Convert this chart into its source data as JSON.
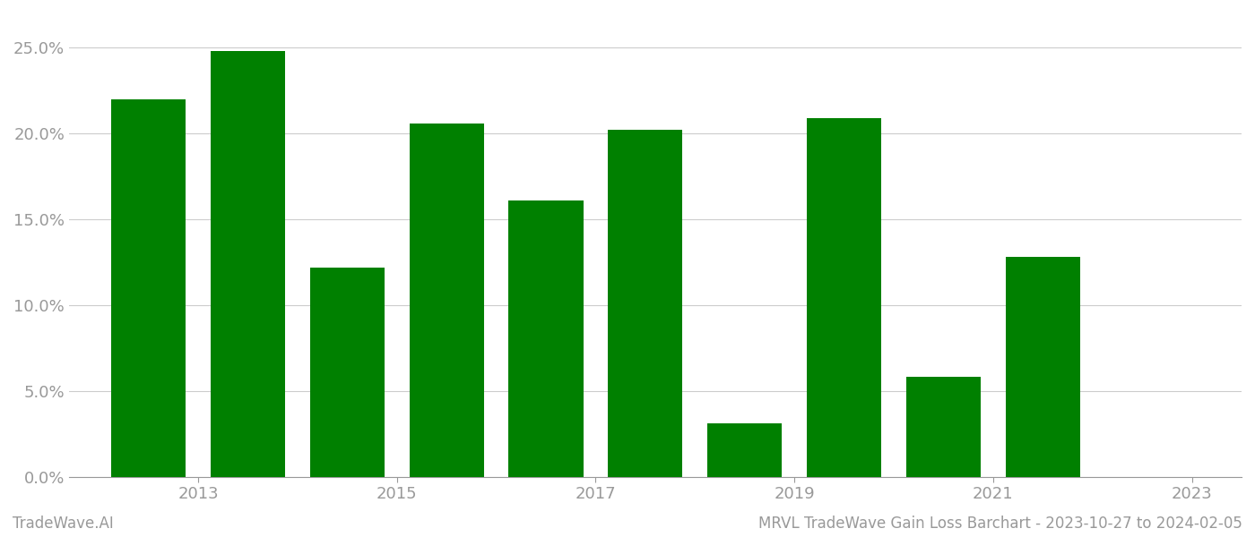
{
  "bar_positions": [
    0,
    1,
    2,
    3,
    4,
    5,
    6,
    7,
    8,
    9
  ],
  "values": [
    0.22,
    0.248,
    0.122,
    0.206,
    0.161,
    0.202,
    0.031,
    0.209,
    0.058,
    0.128
  ],
  "bar_color": "#008000",
  "background_color": "#ffffff",
  "ylabel_ticks": [
    0.0,
    0.05,
    0.1,
    0.15,
    0.2,
    0.25
  ],
  "ylabel_labels": [
    "0.0%",
    "5.0%",
    "10.0%",
    "15.0%",
    "20.0%",
    "25.0%"
  ],
  "xtick_positions": [
    0.5,
    2.5,
    4.5,
    6.5,
    8.5,
    10.5
  ],
  "xtick_labels": [
    "2013",
    "2015",
    "2017",
    "2019",
    "2021",
    "2023"
  ],
  "xlim": [
    -0.8,
    11.0
  ],
  "ylim": [
    0,
    0.27
  ],
  "footer_left": "TradeWave.AI",
  "footer_right": "MRVL TradeWave Gain Loss Barchart - 2023-10-27 to 2024-02-05",
  "grid_color": "#cccccc",
  "tick_color": "#999999",
  "spine_color": "#999999",
  "bar_width": 0.75,
  "figsize": [
    14.0,
    6.0
  ],
  "dpi": 100
}
